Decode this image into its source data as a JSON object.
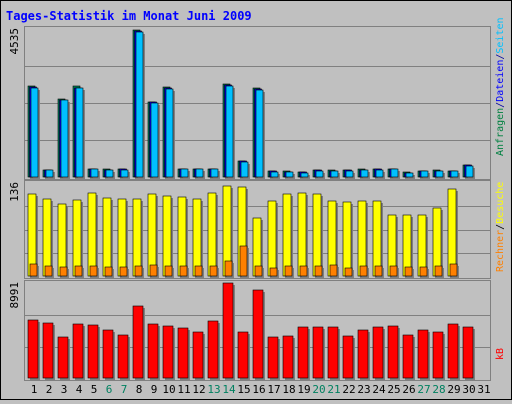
{
  "chart_data": {
    "type": "bar",
    "title": "Tages-Statistik im Monat Juni 2009",
    "x": [
      "1",
      "2",
      "3",
      "4",
      "5",
      "6",
      "7",
      "8",
      "9",
      "10",
      "11",
      "12",
      "13",
      "14",
      "15",
      "16",
      "17",
      "18",
      "19",
      "20",
      "21",
      "22",
      "23",
      "24",
      "25",
      "26",
      "27",
      "28",
      "29",
      "30",
      "31"
    ],
    "x_highlight": [
      "6",
      "7",
      "13",
      "14",
      "20",
      "21",
      "27",
      "28"
    ],
    "panels": [
      {
        "max_label": "4535",
        "ymax": 4535,
        "side_label": [
          {
            "text": "Anfragen",
            "color": "#008040"
          },
          {
            "text": "/",
            "color": "#0000a0"
          },
          {
            "text": "Dateien",
            "color": "#0000ff"
          },
          {
            "text": "/",
            "color": "#0000a0"
          },
          {
            "text": "Seiten",
            "color": "#00c0ff"
          }
        ],
        "series": [
          {
            "name": "Anfragen",
            "color": "#00805c",
            "values": [
              2795,
              215,
              2390,
              2780,
              245,
              230,
              240,
              4505,
              2310,
              2755,
              250,
              250,
              255,
              2845,
              485,
              2720,
              180,
              170,
              150,
              205,
              200,
              205,
              230,
              235,
              250,
              140,
              185,
              200,
              185,
              370,
              0
            ]
          },
          {
            "name": "Dateien",
            "color": "#0000ff",
            "values": [
              2750,
              210,
              2370,
              2740,
              240,
              225,
              235,
              4480,
              2290,
              2720,
              245,
              245,
              250,
              2820,
              475,
              2690,
              175,
              165,
              145,
              200,
              195,
              200,
              225,
              230,
              245,
              135,
              180,
              195,
              180,
              360,
              0
            ]
          },
          {
            "name": "Seiten",
            "color": "#00c0ff",
            "values": [
              2720,
              200,
              2350,
              2720,
              230,
              215,
              225,
              4450,
              2270,
              2700,
              235,
              235,
              240,
              2795,
              445,
              2670,
              165,
              155,
              130,
              190,
              185,
              190,
              215,
              220,
              235,
              125,
              170,
              185,
              170,
              345,
              0
            ]
          }
        ]
      },
      {
        "max_label": "136",
        "ymax": 136,
        "side_label": [
          {
            "text": "Rechner",
            "color": "#ff8000"
          },
          {
            "text": "/",
            "color": "#000000"
          },
          {
            "text": "Besuche",
            "color": "#ffff00"
          }
        ],
        "series": [
          {
            "name": "Besuche",
            "color": "#ffff00",
            "values": [
              120,
              113,
              105,
              111,
              121,
              114,
              113,
              112,
              120,
              117,
              116,
              112,
              122,
              131,
              130,
              85,
              110,
              120,
              122,
              120,
              109,
              108,
              109,
              109,
              89,
              89,
              89,
              100,
              127,
              0,
              0
            ]
          },
          {
            "name": "Rechner",
            "color": "#ff8000",
            "values": [
              17,
              14,
              13,
              15,
              14,
              13,
              13,
              14,
              16,
              15,
              15,
              14,
              15,
              22,
              44,
              14,
              12,
              15,
              14,
              15,
              16,
              12,
              14,
              14,
              14,
              13,
              13,
              14,
              17,
              0,
              0
            ]
          }
        ]
      },
      {
        "max_label": "8991",
        "ymax": 8991,
        "side_label": [
          {
            "text": "kB",
            "color": "#ff0000"
          }
        ],
        "series": [
          {
            "name": "kB",
            "color": "#ff0000",
            "values": [
              5500,
              5200,
              3900,
              5100,
              5000,
              4500,
              4100,
              6800,
              5100,
              4900,
              4700,
              4400,
              5400,
              8950,
              4400,
              8300,
              3900,
              4000,
              4800,
              4800,
              4800,
              4000,
              4500,
              4800,
              4900,
              4100,
              4500,
              4400,
              5100,
              4800,
              0
            ]
          }
        ]
      }
    ],
    "grid": true
  }
}
